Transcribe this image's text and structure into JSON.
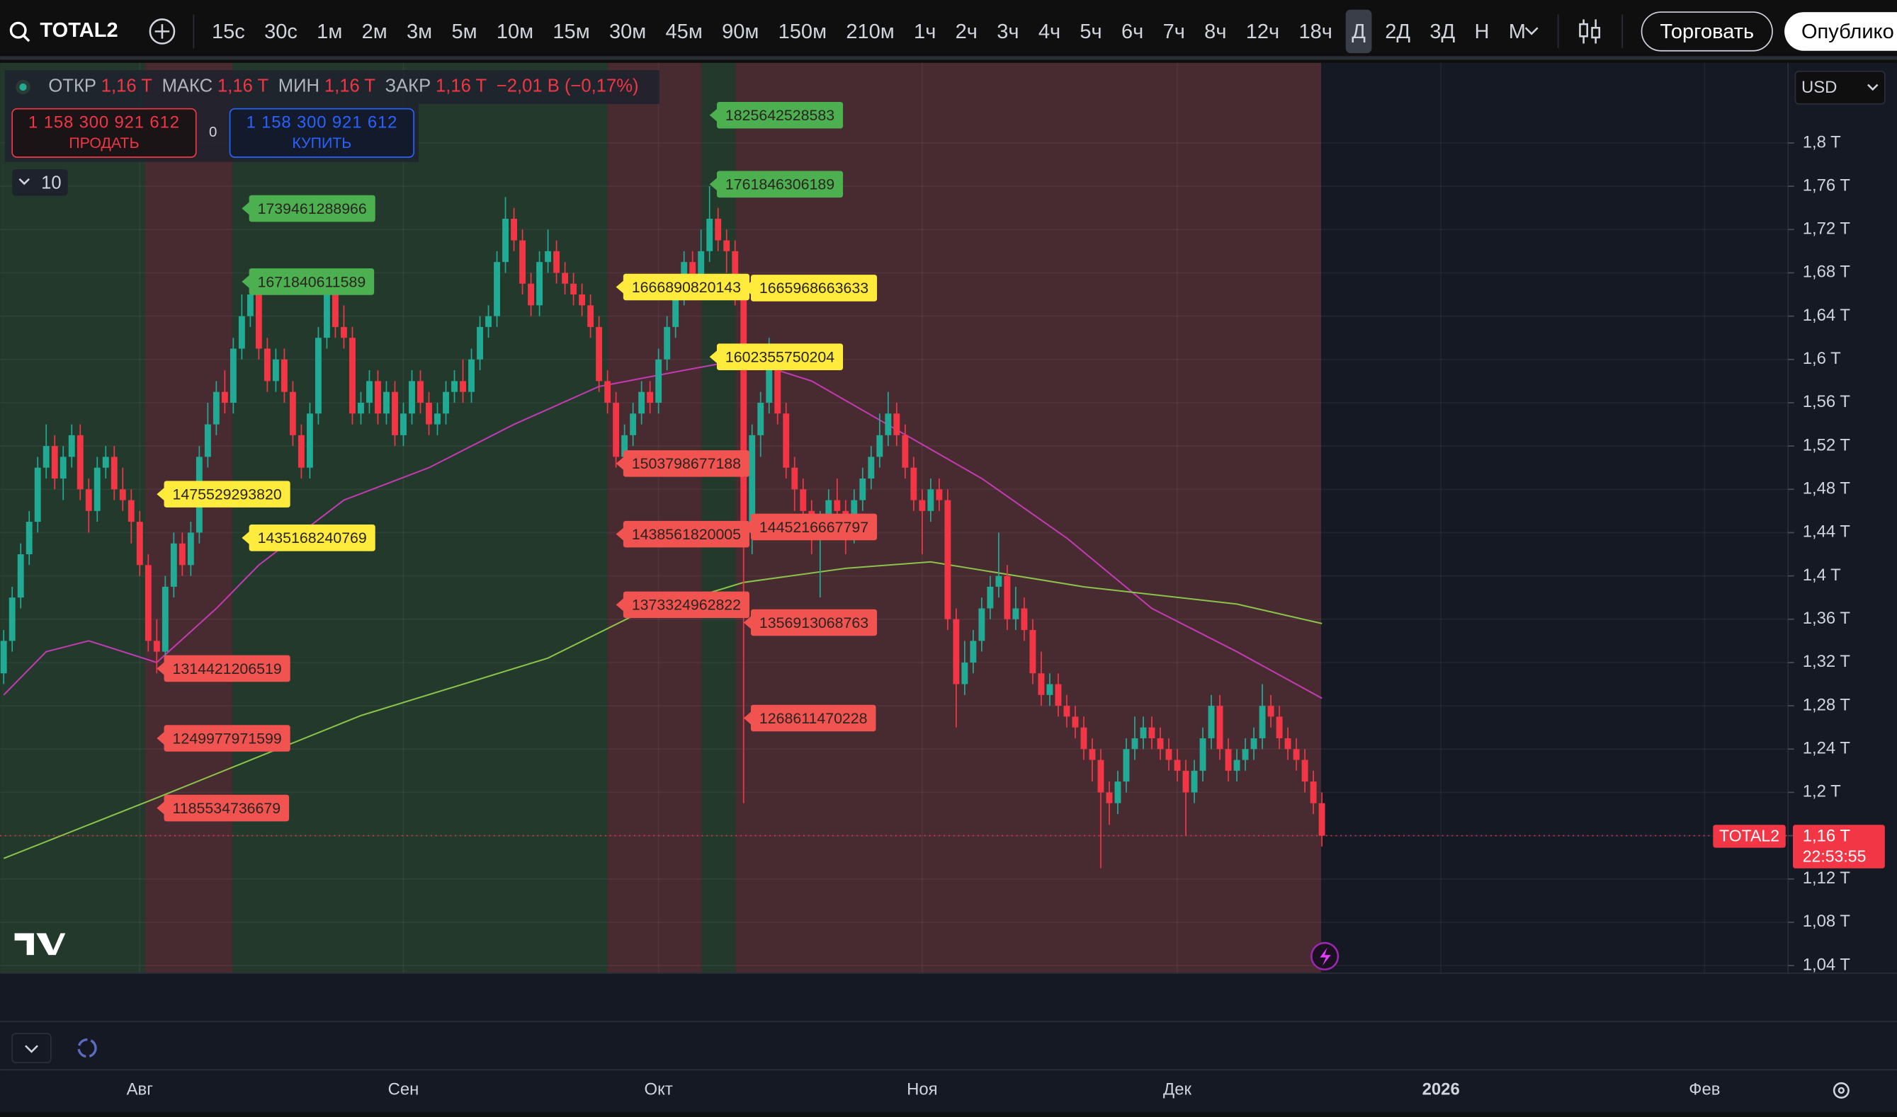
{
  "toolbar": {
    "symbol": "TOTAL2",
    "intervals": [
      "15с",
      "30с",
      "1м",
      "2м",
      "3м",
      "5м",
      "10м",
      "15м",
      "30м",
      "45м",
      "90м",
      "150м",
      "210м",
      "1ч",
      "2ч",
      "3ч",
      "4ч",
      "5ч",
      "6ч",
      "7ч",
      "8ч",
      "12ч",
      "18ч",
      "Д",
      "2Д",
      "3Д",
      "Н",
      "М"
    ],
    "active_interval": 23,
    "trade": "Торговать",
    "publish": "Опублико"
  },
  "legend": {
    "items": [
      {
        "label": "ОТКР",
        "value": "1,16 T"
      },
      {
        "label": "МАКС",
        "value": "1,16 T"
      },
      {
        "label": "МИН",
        "value": "1,16 T"
      },
      {
        "label": "ЗАКР",
        "value": "1,16 T"
      }
    ],
    "change": "−2,01 B (−0,17%)"
  },
  "order_panel": {
    "sell_price": "1 158 300 921 612",
    "sell": "ПРОДАТЬ",
    "spread": "0",
    "buy_price": "1 158 300 921 612",
    "buy": "КУПИТЬ"
  },
  "indicators_count": "10",
  "currency": "USD",
  "price_label": {
    "symbol": "TOTAL2",
    "price": "1,16 T",
    "countdown": "22:53:55"
  },
  "chart_data": {
    "type": "candlestick",
    "categories": [
      null,
      null,
      null,
      null,
      null,
      null,
      null,
      null,
      null,
      null,
      null,
      null,
      null,
      null,
      null,
      null,
      "Авг",
      null,
      null,
      null,
      null,
      null,
      null,
      null,
      null,
      null,
      null,
      null,
      null,
      null,
      null,
      null,
      null,
      null,
      null,
      null,
      null,
      null,
      null,
      null,
      null,
      null,
      null,
      null,
      null,
      null,
      null,
      "Сен",
      null,
      null,
      null,
      null,
      null,
      null,
      null,
      null,
      null,
      null,
      null,
      null,
      null,
      null,
      null,
      null,
      null,
      null,
      null,
      null,
      null,
      null,
      null,
      null,
      null,
      null,
      null,
      null,
      null,
      "Окт",
      null,
      null,
      null,
      null,
      null,
      null,
      null,
      null,
      null,
      null,
      null,
      null,
      null,
      null,
      null,
      null,
      null,
      null,
      null,
      null,
      null,
      null,
      null,
      null,
      null,
      null,
      null,
      null,
      null,
      null,
      "Ноя",
      null,
      null,
      null,
      null,
      null,
      null,
      null,
      null,
      null,
      null,
      null,
      null,
      null,
      null,
      null,
      null,
      null,
      null,
      null,
      null,
      null,
      null,
      null,
      null,
      null,
      null,
      null,
      null,
      null,
      "Дек",
      null,
      null,
      null,
      null,
      null,
      null,
      null,
      null,
      null,
      null,
      null,
      null,
      null,
      null,
      null,
      null,
      null,
      null,
      null,
      null,
      null,
      null,
      null,
      null,
      null,
      null,
      null,
      null,
      null,
      null,
      "2026",
      null,
      null,
      null,
      null,
      null,
      null,
      null,
      null,
      null,
      null,
      null,
      null,
      null,
      null,
      null,
      null,
      null,
      null,
      null,
      null,
      null,
      null,
      null,
      null,
      null,
      null,
      null,
      null,
      null,
      null,
      "Фев"
    ],
    "open": [
      1.31,
      1.34,
      1.38,
      1.42,
      1.45,
      1.5,
      1.52,
      1.49,
      1.51,
      1.53,
      1.48,
      1.46,
      1.5,
      1.51,
      1.48,
      1.47,
      1.45,
      1.41,
      1.34,
      1.33,
      1.39,
      1.43,
      1.41,
      1.44,
      1.51,
      1.54,
      1.57,
      1.56,
      1.61,
      1.64,
      1.66,
      1.61,
      1.58,
      1.6,
      1.57,
      1.53,
      1.5,
      1.55,
      1.62,
      1.66,
      1.63,
      1.62,
      1.55,
      1.56,
      1.58,
      1.55,
      1.57,
      1.53,
      1.55,
      1.58,
      1.56,
      1.54,
      1.55,
      1.57,
      1.58,
      1.57,
      1.6,
      1.63,
      1.64,
      1.69,
      1.73,
      1.71,
      1.67,
      1.65,
      1.69,
      1.7,
      1.68,
      1.67,
      1.66,
      1.65,
      1.63,
      1.58,
      1.56,
      1.51,
      1.53,
      1.55,
      1.57,
      1.56,
      1.6,
      1.63,
      1.66,
      1.69,
      1.67,
      1.7,
      1.73,
      1.71,
      1.7,
      1.66,
      1.44,
      1.53,
      1.56,
      1.6,
      1.55,
      1.5,
      1.48,
      1.46,
      1.44,
      1.45,
      1.47,
      1.46,
      1.44,
      1.47,
      1.49,
      1.51,
      1.53,
      1.55,
      1.53,
      1.5,
      1.47,
      1.46,
      1.48,
      1.47,
      1.36,
      1.3,
      1.32,
      1.34,
      1.37,
      1.39,
      1.4,
      1.36,
      1.37,
      1.35,
      1.31,
      1.29,
      1.3,
      1.28,
      1.27,
      1.26,
      1.24,
      1.23,
      1.2,
      1.19,
      1.21,
      1.24,
      1.25,
      1.26,
      1.25,
      1.24,
      1.23,
      1.22,
      1.2,
      1.22,
      1.25,
      1.28,
      1.24,
      1.22,
      1.23,
      1.24,
      1.25,
      1.28,
      1.27,
      1.25,
      1.24,
      1.23,
      1.21,
      1.19,
      null,
      null,
      null,
      null,
      null,
      null,
      null,
      null,
      null,
      null,
      null,
      null,
      null,
      null,
      null,
      null,
      null,
      null,
      null,
      null,
      null,
      null,
      null,
      null,
      null,
      null,
      null,
      null,
      null,
      null,
      null,
      null,
      null,
      null,
      null,
      null,
      null,
      null,
      null,
      null,
      null,
      null,
      null,
      null,
      null
    ],
    "high": [
      1.35,
      1.39,
      1.43,
      1.46,
      1.51,
      1.54,
      1.53,
      1.52,
      1.54,
      1.54,
      1.49,
      1.51,
      1.52,
      1.52,
      1.5,
      1.48,
      1.46,
      1.42,
      1.36,
      1.4,
      1.44,
      1.44,
      1.45,
      1.52,
      1.56,
      1.58,
      1.59,
      1.62,
      1.66,
      1.68,
      1.67,
      1.62,
      1.61,
      1.61,
      1.58,
      1.54,
      1.56,
      1.63,
      1.67,
      1.67,
      1.65,
      1.63,
      1.57,
      1.59,
      1.59,
      1.58,
      1.58,
      1.56,
      1.59,
      1.59,
      1.57,
      1.56,
      1.58,
      1.59,
      1.6,
      1.61,
      1.64,
      1.65,
      1.7,
      1.75,
      1.74,
      1.72,
      1.68,
      1.7,
      1.72,
      1.71,
      1.69,
      1.68,
      1.67,
      1.66,
      1.64,
      1.59,
      1.57,
      1.54,
      1.56,
      1.58,
      1.58,
      1.61,
      1.64,
      1.67,
      1.7,
      1.7,
      1.72,
      1.76,
      1.74,
      1.72,
      1.71,
      1.67,
      1.54,
      1.57,
      1.62,
      1.61,
      1.56,
      1.51,
      1.49,
      1.47,
      1.46,
      1.48,
      1.49,
      1.47,
      1.48,
      1.5,
      1.52,
      1.55,
      1.57,
      1.56,
      1.54,
      1.51,
      1.48,
      1.49,
      1.49,
      1.48,
      1.37,
      1.34,
      1.35,
      1.38,
      1.4,
      1.44,
      1.41,
      1.39,
      1.38,
      1.36,
      1.33,
      1.31,
      1.31,
      1.29,
      1.28,
      1.27,
      1.25,
      1.24,
      1.21,
      1.22,
      1.25,
      1.27,
      1.27,
      1.27,
      1.26,
      1.25,
      1.24,
      1.23,
      1.23,
      1.26,
      1.29,
      1.29,
      1.25,
      1.24,
      1.25,
      1.26,
      1.3,
      1.29,
      1.28,
      1.26,
      1.25,
      1.24,
      1.22,
      1.2,
      null,
      null,
      null,
      null,
      null,
      null,
      null,
      null,
      null,
      null,
      null,
      null,
      null,
      null,
      null,
      null,
      null,
      null,
      null,
      null,
      null,
      null,
      null,
      null,
      null,
      null,
      null,
      null,
      null,
      null,
      null,
      null,
      null,
      null,
      null,
      null,
      null,
      null,
      null,
      null,
      null,
      null,
      null,
      null,
      null
    ],
    "low": [
      1.3,
      1.33,
      1.37,
      1.41,
      1.44,
      1.49,
      1.48,
      1.47,
      1.5,
      1.47,
      1.44,
      1.45,
      1.49,
      1.47,
      1.46,
      1.43,
      1.4,
      1.33,
      1.31,
      1.32,
      1.38,
      1.4,
      1.4,
      1.43,
      1.5,
      1.53,
      1.55,
      1.55,
      1.6,
      1.63,
      1.6,
      1.57,
      1.57,
      1.56,
      1.52,
      1.49,
      1.49,
      1.54,
      1.61,
      1.62,
      1.61,
      1.54,
      1.54,
      1.55,
      1.54,
      1.54,
      1.52,
      1.52,
      1.54,
      1.55,
      1.53,
      1.53,
      1.54,
      1.56,
      1.56,
      1.56,
      1.59,
      1.62,
      1.63,
      1.68,
      1.7,
      1.66,
      1.64,
      1.64,
      1.68,
      1.67,
      1.66,
      1.65,
      1.64,
      1.62,
      1.57,
      1.55,
      1.5,
      1.5,
      1.52,
      1.54,
      1.55,
      1.55,
      1.59,
      1.62,
      1.65,
      1.66,
      1.66,
      1.69,
      1.7,
      1.68,
      1.65,
      1.19,
      1.42,
      1.51,
      1.55,
      1.54,
      1.49,
      1.46,
      1.44,
      1.42,
      1.38,
      1.44,
      1.45,
      1.42,
      1.43,
      1.46,
      1.48,
      1.5,
      1.52,
      1.52,
      1.49,
      1.46,
      1.42,
      1.45,
      1.46,
      1.35,
      1.26,
      1.29,
      1.31,
      1.33,
      1.36,
      1.38,
      1.35,
      1.35,
      1.34,
      1.3,
      1.28,
      1.28,
      1.27,
      1.26,
      1.25,
      1.23,
      1.21,
      1.13,
      1.17,
      1.18,
      1.2,
      1.23,
      1.24,
      1.24,
      1.23,
      1.22,
      1.21,
      1.16,
      1.19,
      1.21,
      1.24,
      1.23,
      1.21,
      1.21,
      1.22,
      1.23,
      1.24,
      1.26,
      1.24,
      1.23,
      1.22,
      1.2,
      1.18,
      1.15,
      null,
      null,
      null,
      null,
      null,
      null,
      null,
      null,
      null,
      null,
      null,
      null,
      null,
      null,
      null,
      null,
      null,
      null,
      null,
      null,
      null,
      null,
      null,
      null,
      null,
      null,
      null,
      null,
      null,
      null,
      null,
      null,
      null,
      null,
      null,
      null,
      null,
      null,
      null,
      null,
      null,
      null,
      null,
      null,
      null
    ],
    "close": [
      1.34,
      1.38,
      1.42,
      1.45,
      1.5,
      1.52,
      1.49,
      1.51,
      1.53,
      1.48,
      1.46,
      1.5,
      1.51,
      1.48,
      1.47,
      1.45,
      1.41,
      1.34,
      1.33,
      1.39,
      1.43,
      1.41,
      1.44,
      1.51,
      1.54,
      1.57,
      1.56,
      1.61,
      1.64,
      1.66,
      1.61,
      1.58,
      1.6,
      1.57,
      1.53,
      1.5,
      1.55,
      1.62,
      1.66,
      1.63,
      1.62,
      1.55,
      1.56,
      1.58,
      1.55,
      1.57,
      1.53,
      1.55,
      1.58,
      1.56,
      1.54,
      1.55,
      1.57,
      1.58,
      1.57,
      1.6,
      1.63,
      1.64,
      1.69,
      1.73,
      1.71,
      1.67,
      1.65,
      1.69,
      1.7,
      1.68,
      1.67,
      1.66,
      1.65,
      1.63,
      1.58,
      1.56,
      1.51,
      1.53,
      1.55,
      1.57,
      1.56,
      1.6,
      1.63,
      1.66,
      1.69,
      1.67,
      1.7,
      1.73,
      1.71,
      1.7,
      1.66,
      1.44,
      1.53,
      1.56,
      1.6,
      1.55,
      1.5,
      1.48,
      1.46,
      1.44,
      1.45,
      1.47,
      1.46,
      1.44,
      1.47,
      1.49,
      1.51,
      1.53,
      1.55,
      1.53,
      1.5,
      1.47,
      1.46,
      1.48,
      1.47,
      1.36,
      1.3,
      1.32,
      1.34,
      1.37,
      1.39,
      1.4,
      1.36,
      1.37,
      1.35,
      1.31,
      1.29,
      1.3,
      1.28,
      1.27,
      1.26,
      1.24,
      1.23,
      1.2,
      1.19,
      1.21,
      1.24,
      1.25,
      1.26,
      1.25,
      1.24,
      1.23,
      1.22,
      1.2,
      1.22,
      1.25,
      1.28,
      1.24,
      1.22,
      1.23,
      1.24,
      1.25,
      1.28,
      1.27,
      1.25,
      1.24,
      1.23,
      1.21,
      1.19,
      1.16,
      null,
      null,
      null,
      null,
      null,
      null,
      null,
      null,
      null,
      null,
      null,
      null,
      null,
      null,
      null,
      null,
      null,
      null,
      null,
      null,
      null,
      null,
      null,
      null,
      null,
      null,
      null,
      null,
      null,
      null,
      null,
      null,
      null,
      null,
      null,
      null,
      null,
      null,
      null,
      null,
      null,
      null,
      null,
      null,
      null
    ],
    "up_color": "#22ab94",
    "down_color": "#f23645",
    "ylim": [
      1.033,
      1.874
    ],
    "yticks": [
      {
        "value": 1.04,
        "label": "1,04 T"
      },
      {
        "value": 1.08,
        "label": "1,08 T"
      },
      {
        "value": 1.12,
        "label": "1,12 T"
      },
      {
        "value": 1.16,
        "label": "1,16 T"
      },
      {
        "value": 1.2,
        "label": "1,2 T"
      },
      {
        "value": 1.24,
        "label": "1,24 T"
      },
      {
        "value": 1.28,
        "label": "1,28 T"
      },
      {
        "value": 1.32,
        "label": "1,32 T"
      },
      {
        "value": 1.36,
        "label": "1,36 T"
      },
      {
        "value": 1.4,
        "label": "1,4 T"
      },
      {
        "value": 1.44,
        "label": "1,44 T"
      },
      {
        "value": 1.48,
        "label": "1,48 T"
      },
      {
        "value": 1.52,
        "label": "1,52 T"
      },
      {
        "value": 1.56,
        "label": "1,56 T"
      },
      {
        "value": 1.6,
        "label": "1,6 T"
      },
      {
        "value": 1.64,
        "label": "1,64 T"
      },
      {
        "value": 1.68,
        "label": "1,68 T"
      },
      {
        "value": 1.72,
        "label": "1,72 T"
      },
      {
        "value": 1.76,
        "label": "1,76 T"
      },
      {
        "value": 1.8,
        "label": "1,8 T"
      }
    ],
    "grid": true,
    "overlays": [
      {
        "color": "#c23bb1",
        "x": [
          0,
          5,
          10,
          18,
          25,
          30,
          40,
          50,
          60,
          70,
          80,
          87,
          95,
          105,
          115,
          125,
          135,
          145,
          155
        ],
        "values": [
          1.29,
          1.33,
          1.34,
          1.32,
          1.37,
          1.41,
          1.47,
          1.5,
          1.54,
          1.575,
          1.59,
          1.6,
          1.58,
          1.535,
          1.49,
          1.435,
          1.37,
          1.33,
          1.287
        ]
      },
      {
        "color": "#8bc34a",
        "x": [
          0,
          18,
          42,
          64,
          74,
          87,
          99,
          109,
          127,
          145,
          155
        ],
        "values": [
          1.139,
          1.195,
          1.271,
          1.324,
          1.363,
          1.394,
          1.407,
          1.413,
          1.39,
          1.374,
          1.356
        ]
      }
    ],
    "annotations": [
      {
        "label": "1825642528583",
        "value": 1.825642528583,
        "x": 83,
        "color": "#4caf50"
      },
      {
        "label": "1761846306189",
        "value": 1.761846306189,
        "x": 83,
        "color": "#4caf50"
      },
      {
        "label": "1739461288966",
        "value": 1.739461288966,
        "x": 28,
        "color": "#4caf50"
      },
      {
        "label": "1671840611589",
        "value": 1.671840611589,
        "x": 28,
        "color": "#4caf50"
      },
      {
        "label": "1666890820143",
        "value": 1.666890820143,
        "x": 72,
        "color": "#ffeb3b"
      },
      {
        "label": "1665968663633",
        "value": 1.665968663633,
        "x": 87,
        "color": "#ffeb3b"
      },
      {
        "label": "1602355750204",
        "value": 1.602355750204,
        "x": 83,
        "color": "#ffeb3b"
      },
      {
        "label": "1475529293820",
        "value": 1.47552929382,
        "x": 18,
        "color": "#ffeb3b"
      },
      {
        "label": "1435168240769",
        "value": 1.435168240769,
        "x": 28,
        "color": "#ffeb3b"
      },
      {
        "label": "1503798677188",
        "value": 1.503798677188,
        "x": 72,
        "color": "#f05350"
      },
      {
        "label": "1438561820005",
        "value": 1.438561820005,
        "x": 72,
        "color": "#f05350"
      },
      {
        "label": "1445216667797",
        "value": 1.445216667797,
        "x": 87,
        "color": "#f05350"
      },
      {
        "label": "1373324962822",
        "value": 1.373324962822,
        "x": 72,
        "color": "#f05350"
      },
      {
        "label": "1356913068763",
        "value": 1.356913068763,
        "x": 87,
        "color": "#f05350"
      },
      {
        "label": "1314421206519",
        "value": 1.314421206519,
        "x": 18,
        "color": "#f05350"
      },
      {
        "label": "1268611470228",
        "value": 1.268611470228,
        "x": 87,
        "color": "#f05350"
      },
      {
        "label": "1249977971599",
        "value": 1.249977971599,
        "x": 18,
        "color": "#f05350"
      },
      {
        "label": "1185534736679",
        "value": 1.185534736679,
        "x": 18,
        "color": "#f05350"
      }
    ]
  }
}
